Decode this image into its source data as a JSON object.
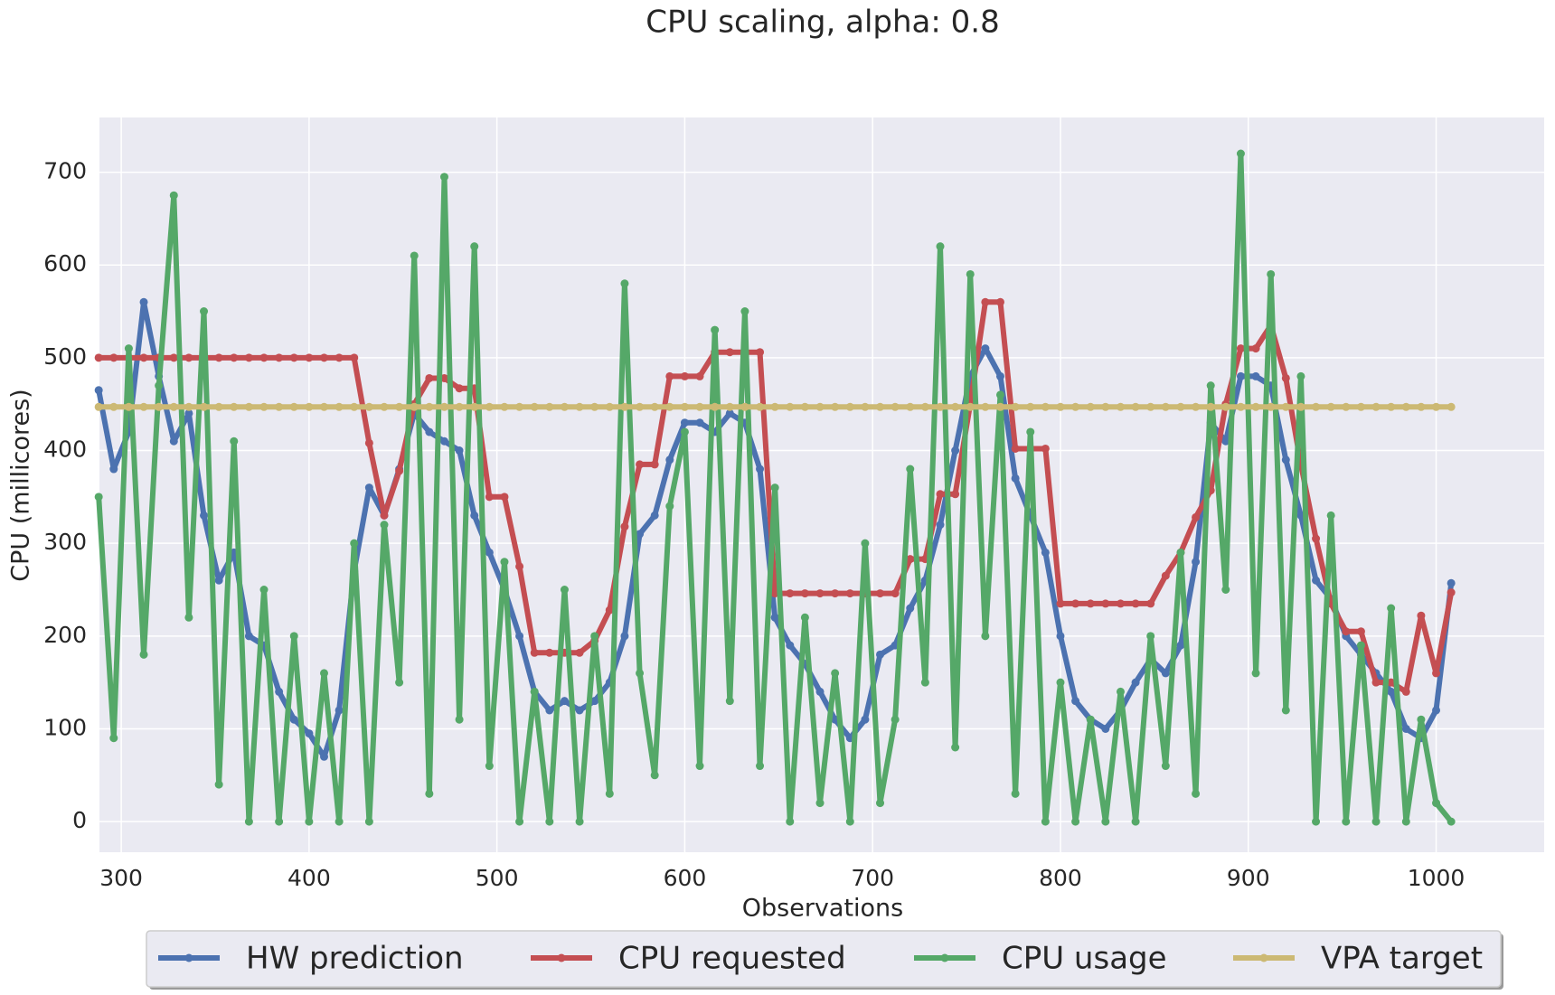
{
  "chart_data": {
    "type": "line",
    "title": "CPU scaling, alpha: 0.8",
    "x_label": "Observations",
    "y_label": "CPU (millicores)",
    "xlim": [
      288.4,
      1057.5
    ],
    "ylim": [
      -33,
      759
    ],
    "xticks": [
      300,
      400,
      500,
      600,
      700,
      800,
      900,
      1000
    ],
    "yticks": [
      0,
      100,
      200,
      300,
      400,
      500,
      600,
      700
    ],
    "grid": true,
    "legend": "bottom",
    "x": [
      288,
      296,
      304,
      312,
      320,
      328,
      336,
      344,
      352,
      360,
      368,
      376,
      384,
      392,
      400,
      408,
      416,
      424,
      432,
      440,
      448,
      456,
      464,
      472,
      480,
      488,
      496,
      504,
      512,
      520,
      528,
      536,
      544,
      552,
      560,
      568,
      576,
      584,
      592,
      600,
      608,
      616,
      624,
      632,
      640,
      648,
      656,
      664,
      672,
      680,
      688,
      696,
      704,
      712,
      720,
      728,
      736,
      744,
      752,
      760,
      768,
      776,
      784,
      792,
      800,
      808,
      816,
      824,
      832,
      840,
      848,
      856,
      864,
      872,
      880,
      888,
      896,
      904,
      912,
      920,
      928,
      936,
      944,
      952,
      960,
      968,
      976,
      984,
      992,
      1000,
      1008
    ],
    "series": [
      {
        "name": "HW prediction",
        "color": "#4c72b0",
        "values": [
          465,
          380,
          420,
          560,
          480,
          410,
          440,
          330,
          260,
          290,
          200,
          190,
          140,
          110,
          95,
          70,
          120,
          270,
          360,
          330,
          380,
          440,
          420,
          410,
          400,
          330,
          290,
          250,
          200,
          140,
          120,
          130,
          120,
          130,
          150,
          200,
          310,
          330,
          390,
          430,
          430,
          420,
          440,
          430,
          380,
          220,
          190,
          170,
          140,
          110,
          90,
          110,
          180,
          190,
          230,
          260,
          320,
          400,
          480,
          510,
          480,
          370,
          330,
          290,
          200,
          130,
          110,
          100,
          120,
          150,
          175,
          160,
          190,
          280,
          430,
          410,
          480,
          480,
          470,
          390,
          330,
          260,
          240,
          200,
          180,
          160,
          140,
          100,
          90,
          120,
          257
        ]
      },
      {
        "name": "CPU requested",
        "color": "#c44e52",
        "values": [
          500,
          500,
          500,
          500,
          500,
          500,
          500,
          500,
          500,
          500,
          500,
          500,
          500,
          500,
          500,
          500,
          500,
          500,
          408,
          330,
          378,
          450,
          478,
          478,
          467,
          467,
          350,
          350,
          275,
          182,
          182,
          182,
          182,
          195,
          228,
          318,
          385,
          385,
          480,
          480,
          480,
          506,
          506,
          506,
          506,
          246,
          246,
          246,
          246,
          246,
          246,
          246,
          246,
          246,
          283,
          283,
          353,
          353,
          450,
          560,
          560,
          402,
          402,
          402,
          235,
          235,
          235,
          235,
          235,
          235,
          235,
          265,
          290,
          328,
          357,
          450,
          510,
          510,
          535,
          478,
          385,
          305,
          235,
          205,
          205,
          150,
          150,
          140,
          222,
          160,
          247
        ]
      },
      {
        "name": "CPU usage",
        "color": "#55a868",
        "values": [
          350,
          90,
          510,
          180,
          470,
          675,
          220,
          550,
          40,
          410,
          0,
          250,
          0,
          200,
          0,
          160,
          0,
          300,
          0,
          320,
          150,
          610,
          30,
          695,
          110,
          620,
          60,
          280,
          0,
          140,
          0,
          250,
          0,
          200,
          30,
          580,
          160,
          50,
          340,
          420,
          60,
          530,
          130,
          550,
          60,
          360,
          0,
          220,
          20,
          160,
          0,
          300,
          20,
          110,
          380,
          150,
          620,
          80,
          590,
          200,
          460,
          30,
          420,
          0,
          150,
          0,
          110,
          0,
          140,
          0,
          200,
          60,
          290,
          30,
          470,
          250,
          720,
          160,
          590,
          120,
          480,
          0,
          330,
          0,
          190,
          0,
          230,
          0,
          110,
          20,
          0
        ]
      },
      {
        "name": "VPA target",
        "color": "#ccb974",
        "values": [
          447,
          447,
          447,
          447,
          447,
          447,
          447,
          447,
          447,
          447,
          447,
          447,
          447,
          447,
          447,
          447,
          447,
          447,
          447,
          447,
          447,
          447,
          447,
          447,
          447,
          447,
          447,
          447,
          447,
          447,
          447,
          447,
          447,
          447,
          447,
          447,
          447,
          447,
          447,
          447,
          447,
          447,
          447,
          447,
          447,
          447,
          447,
          447,
          447,
          447,
          447,
          447,
          447,
          447,
          447,
          447,
          447,
          447,
          447,
          447,
          447,
          447,
          447,
          447,
          447,
          447,
          447,
          447,
          447,
          447,
          447,
          447,
          447,
          447,
          447,
          447,
          447,
          447,
          447,
          447,
          447,
          447,
          447,
          447,
          447,
          447,
          447,
          447,
          447,
          447,
          447
        ]
      }
    ]
  }
}
